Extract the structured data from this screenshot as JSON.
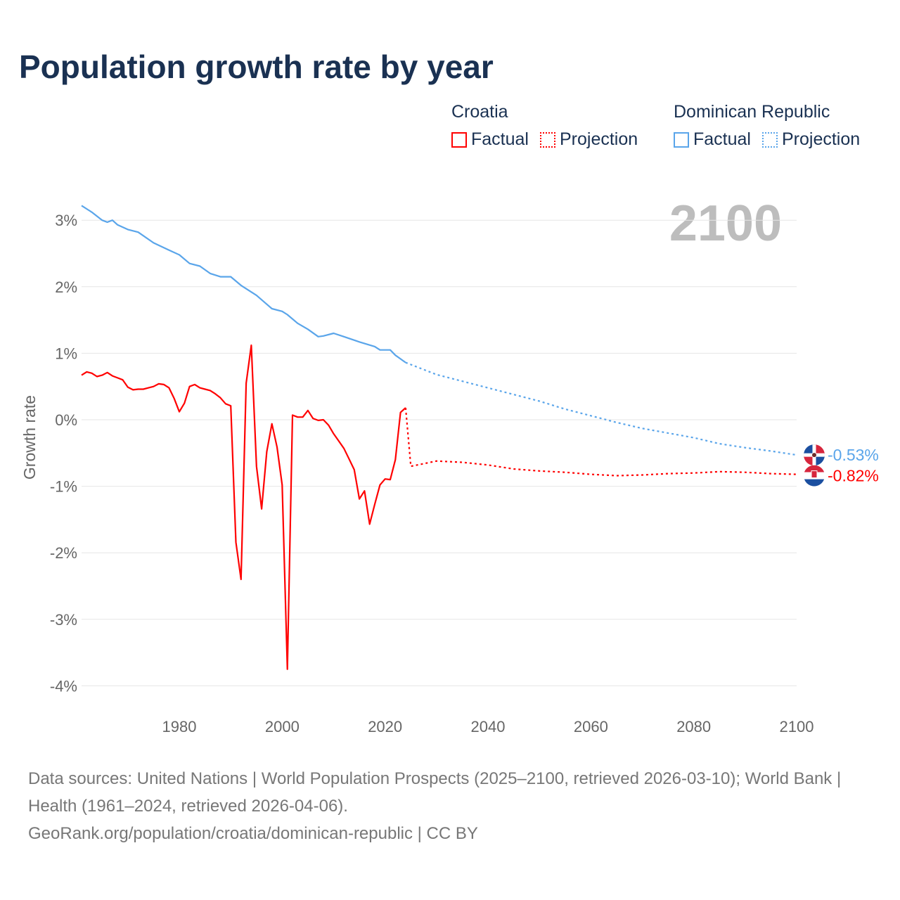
{
  "title": "Population growth rate by year",
  "legend": [
    {
      "country": "Croatia",
      "factual": "Factual",
      "projection": "Projection",
      "color": "#ff0000"
    },
    {
      "country": "Dominican Republic",
      "factual": "Factual",
      "projection": "Projection",
      "color": "#5aa5ea"
    }
  ],
  "year_label": "2100",
  "footer": {
    "sources": "Data sources: United Nations | World Population Prospects (2025–2100, retrieved 2026-03-10); World Bank | Health (1961–2024, retrieved 2026-04-06).",
    "link": "GeoRank.org/population/croatia/dominican-republic | CC BY"
  },
  "chart_data": {
    "type": "line",
    "title": "Population growth rate by year",
    "xlabel": "",
    "ylabel": "Growth rate",
    "xlim": [
      1961,
      2100
    ],
    "ylim": [
      -4.3,
      3.3
    ],
    "xticks": [
      1980,
      2000,
      2020,
      2040,
      2060,
      2080,
      2100
    ],
    "yticks": [
      3,
      2,
      1,
      0,
      -1,
      -2,
      -3,
      -4
    ],
    "ytick_labels": [
      "3%",
      "2%",
      "1%",
      "0%",
      "-1%",
      "-2%",
      "-3%",
      "-4%"
    ],
    "end_labels": [
      "-0.53%",
      "-0.82%"
    ],
    "series": [
      {
        "name": "Croatia Factual",
        "color": "#ff0000",
        "dashed": false,
        "x": [
          1961,
          1962,
          1963,
          1964,
          1965,
          1966,
          1967,
          1968,
          1969,
          1970,
          1971,
          1972,
          1973,
          1974,
          1975,
          1976,
          1977,
          1978,
          1979,
          1980,
          1981,
          1982,
          1983,
          1984,
          1985,
          1986,
          1987,
          1988,
          1989,
          1990,
          1991,
          1992,
          1993,
          1994,
          1995,
          1996,
          1997,
          1998,
          1999,
          2000,
          2001,
          2002,
          2003,
          2004,
          2005,
          2006,
          2007,
          2008,
          2009,
          2010,
          2011,
          2012,
          2013,
          2014,
          2015,
          2016,
          2017,
          2018,
          2019,
          2020,
          2021,
          2022,
          2023,
          2024
        ],
        "y": [
          0.67,
          0.72,
          0.7,
          0.65,
          0.67,
          0.71,
          0.66,
          0.63,
          0.6,
          0.49,
          0.45,
          0.46,
          0.46,
          0.48,
          0.5,
          0.54,
          0.53,
          0.48,
          0.32,
          0.12,
          0.25,
          0.5,
          0.53,
          0.48,
          0.46,
          0.44,
          0.39,
          0.33,
          0.24,
          0.21,
          -1.84,
          -2.4,
          0.55,
          1.12,
          -0.7,
          -1.34,
          -0.48,
          -0.06,
          -0.41,
          -0.98,
          -3.75,
          0.07,
          0.04,
          0.04,
          0.14,
          0.02,
          -0.01,
          0.0,
          -0.08,
          -0.21,
          -0.32,
          -0.43,
          -0.59,
          -0.75,
          -1.19,
          -1.07,
          -1.57,
          -1.27,
          -0.98,
          -0.89,
          -0.9,
          -0.6,
          0.11,
          0.18
        ]
      },
      {
        "name": "Croatia Projection",
        "color": "#ff0000",
        "dashed": true,
        "x": [
          2024,
          2025,
          2030,
          2035,
          2040,
          2045,
          2050,
          2055,
          2060,
          2065,
          2070,
          2075,
          2080,
          2085,
          2090,
          2095,
          2100
        ],
        "y": [
          0.18,
          -0.7,
          -0.62,
          -0.64,
          -0.68,
          -0.74,
          -0.77,
          -0.79,
          -0.82,
          -0.84,
          -0.83,
          -0.81,
          -0.8,
          -0.78,
          -0.79,
          -0.81,
          -0.82
        ]
      },
      {
        "name": "Dominican Republic Factual",
        "color": "#5aa5ea",
        "dashed": false,
        "x": [
          1961,
          1963,
          1965,
          1966,
          1967,
          1968,
          1970,
          1972,
          1975,
          1978,
          1980,
          1982,
          1984,
          1986,
          1988,
          1990,
          1992,
          1995,
          1998,
          2000,
          2001,
          2003,
          2005,
          2007,
          2008,
          2010,
          2012,
          2015,
          2018,
          2019,
          2021,
          2022,
          2024
        ],
        "y": [
          3.22,
          3.12,
          3.0,
          2.97,
          3.0,
          2.93,
          2.86,
          2.82,
          2.66,
          2.55,
          2.48,
          2.35,
          2.31,
          2.2,
          2.15,
          2.15,
          2.02,
          1.87,
          1.67,
          1.63,
          1.58,
          1.45,
          1.36,
          1.25,
          1.26,
          1.3,
          1.25,
          1.17,
          1.1,
          1.05,
          1.05,
          0.97,
          0.86
        ]
      },
      {
        "name": "Dominican Republic Projection",
        "color": "#5aa5ea",
        "dashed": true,
        "x": [
          2024,
          2030,
          2035,
          2040,
          2045,
          2050,
          2055,
          2060,
          2065,
          2070,
          2075,
          2080,
          2085,
          2090,
          2095,
          2100
        ],
        "y": [
          0.86,
          0.68,
          0.58,
          0.48,
          0.38,
          0.28,
          0.16,
          0.06,
          -0.04,
          -0.13,
          -0.2,
          -0.27,
          -0.36,
          -0.42,
          -0.47,
          -0.53
        ]
      }
    ]
  }
}
